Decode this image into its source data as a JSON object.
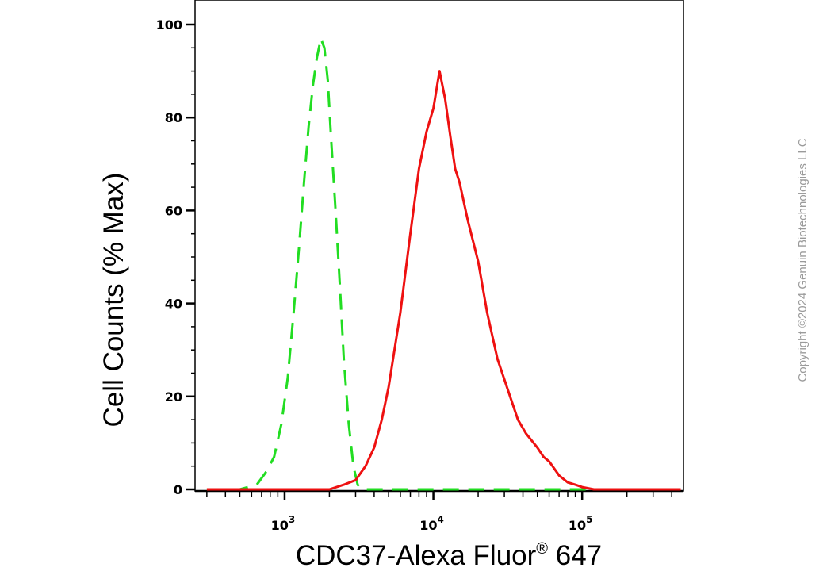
{
  "chart_data": {
    "type": "line",
    "x_scale": "log",
    "x_tick_labels": [
      "10",
      "10",
      "10"
    ],
    "x_tick_exponents": [
      "3",
      "4",
      "5"
    ],
    "x_tick_values": [
      1000,
      10000,
      100000
    ],
    "xlim": [
      250,
      480000
    ],
    "ylim": [
      0,
      105
    ],
    "y_ticks": [
      0,
      20,
      40,
      60,
      80,
      100
    ],
    "y_tick_labels": [
      "0",
      "20",
      "40",
      "60",
      "80",
      "100"
    ],
    "xlabel": "CDC37-Alexa Fluor",
    "xlabel_sup": "®",
    "xlabel_suffix": " 647",
    "ylabel": "Cell Counts (% Max)",
    "grid": false,
    "series": [
      {
        "style": "dashed",
        "color": "#22dd22",
        "x": [
          300,
          500,
          650,
          760,
          850,
          950,
          1050,
          1150,
          1250,
          1350,
          1450,
          1550,
          1650,
          1750,
          1850,
          1950,
          2050,
          2200,
          2350,
          2500,
          2700,
          2900,
          3100,
          3300,
          4000,
          10000,
          50000,
          460000
        ],
        "y": [
          0,
          0,
          1,
          4,
          7,
          14,
          24,
          38,
          52,
          66,
          78,
          87,
          93,
          97,
          95,
          88,
          76,
          60,
          44,
          28,
          14,
          5,
          1,
          0,
          0,
          0,
          0,
          0
        ]
      },
      {
        "style": "solid",
        "color": "#ee1111",
        "x": [
          300,
          1000,
          1500,
          2000,
          2500,
          3000,
          3500,
          4000,
          4500,
          5000,
          6000,
          7000,
          8000,
          9000,
          10000,
          11000,
          12000,
          13000,
          14000,
          15000,
          17000,
          20000,
          23000,
          27000,
          32000,
          37000,
          42000,
          50000,
          55000,
          60000,
          70000,
          80000,
          90000,
          100000,
          120000,
          200000,
          460000
        ],
        "y": [
          0,
          0,
          0,
          0,
          1,
          2,
          5,
          9,
          15,
          22,
          38,
          55,
          69,
          77,
          82,
          90,
          84,
          76,
          69,
          66,
          58,
          49,
          38,
          28,
          21,
          15,
          12,
          9,
          7,
          6,
          3,
          1.5,
          1,
          0.5,
          0,
          0,
          0
        ]
      }
    ]
  },
  "copyright": "Copyright ©2024 Genuin Biotechnologies LLC"
}
